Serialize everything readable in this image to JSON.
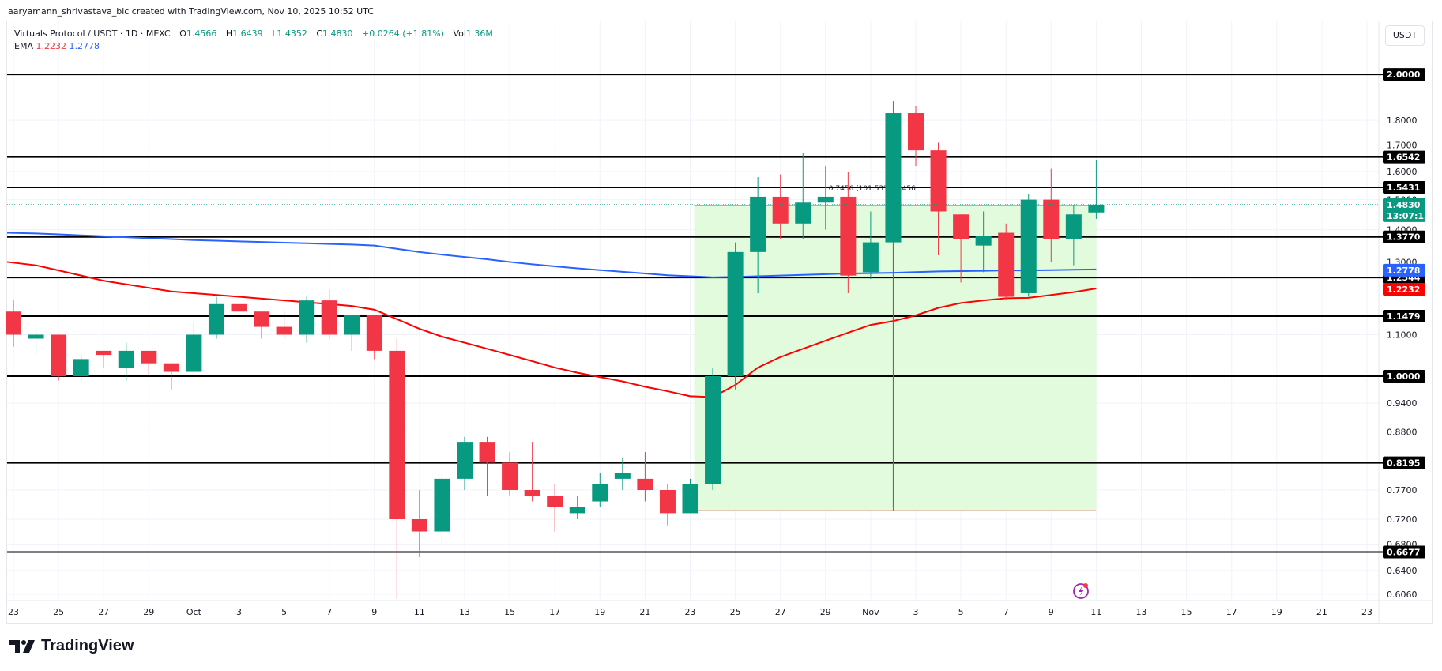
{
  "header": {
    "credit": "aaryamann_shrivastava_bic created with TradingView.com, Nov 10, 2025 10:52 UTC",
    "symbol": "Virtuals Protocol / USDT · 1D · MEXC",
    "open_label": "O",
    "open": "1.4566",
    "high_label": "H",
    "high": "1.6439",
    "low_label": "L",
    "low": "1.4352",
    "close_label": "C",
    "close": "1.4830",
    "change": "+0.0264 (+1.81%)",
    "vol_label": "Vol",
    "vol": "1.36M",
    "ema_label": "EMA",
    "ema1": "1.2232",
    "ema2": "1.2778"
  },
  "currency_button": "USDT",
  "logo_text": "TradingView",
  "colors": {
    "up": "#089981",
    "down": "#f23645",
    "ema_short": "#ff0000",
    "ema_long": "#2962ff",
    "measure_fill": "#e1fbdc",
    "price_tag": "#089981"
  },
  "chart_data": {
    "type": "candlestick",
    "title": "Virtuals Protocol / USDT · 1D · MEXC",
    "scale": "log",
    "ylim": [
      0.595,
      2.12
    ],
    "y_ticks": [
      "1.8000",
      "1.7000",
      "1.6000",
      "1.5000",
      "1.4000",
      "1.3000",
      "1.1000",
      "0.9400",
      "0.8800",
      "0.7700",
      "0.7200",
      "0.6800",
      "0.6400",
      "0.6060"
    ],
    "x_ticks": [
      "23",
      "25",
      "27",
      "29",
      "Oct",
      "3",
      "5",
      "7",
      "9",
      "11",
      "13",
      "15",
      "17",
      "19",
      "21",
      "23",
      "25",
      "27",
      "29",
      "Nov",
      "3",
      "5",
      "7",
      "9",
      "11",
      "13",
      "15",
      "17",
      "19",
      "21",
      "23"
    ],
    "horizontal_levels": [
      "2.0000",
      "1.6542",
      "1.5431",
      "1.3770",
      "1.2544",
      "1.1479",
      "1.0000",
      "0.8195",
      "0.6677"
    ],
    "last_price": {
      "value": "1.4830",
      "countdown": "13:07:13"
    },
    "ema_tags": {
      "blue": "1.2778",
      "red": "1.2232"
    },
    "measure_annotation": "0.7456 (101.53%) 7,456",
    "candles": [
      {
        "d": "Sep 23",
        "o": 1.16,
        "h": 1.19,
        "l": 1.07,
        "c": 1.1
      },
      {
        "d": "Sep 24",
        "o": 1.09,
        "h": 1.12,
        "l": 1.05,
        "c": 1.1
      },
      {
        "d": "Sep 25",
        "o": 1.1,
        "h": 1.1,
        "l": 0.99,
        "c": 1.0
      },
      {
        "d": "Sep 26",
        "o": 1.0,
        "h": 1.05,
        "l": 0.99,
        "c": 1.04
      },
      {
        "d": "Sep 27",
        "o": 1.06,
        "h": 1.04,
        "l": 1.02,
        "c": 1.05
      },
      {
        "d": "Sep 28",
        "o": 1.02,
        "h": 1.08,
        "l": 0.99,
        "c": 1.06
      },
      {
        "d": "Sep 29",
        "o": 1.06,
        "h": 1.06,
        "l": 1.0,
        "c": 1.03
      },
      {
        "d": "Sep 30",
        "o": 1.03,
        "h": 1.02,
        "l": 0.97,
        "c": 1.01
      },
      {
        "d": "Oct 1",
        "o": 1.01,
        "h": 1.13,
        "l": 1.0,
        "c": 1.1
      },
      {
        "d": "Oct 2",
        "o": 1.1,
        "h": 1.2,
        "l": 1.09,
        "c": 1.18
      },
      {
        "d": "Oct 3",
        "o": 1.18,
        "h": 1.18,
        "l": 1.12,
        "c": 1.16
      },
      {
        "d": "Oct 4",
        "o": 1.16,
        "h": 1.15,
        "l": 1.09,
        "c": 1.12
      },
      {
        "d": "Oct 5",
        "o": 1.12,
        "h": 1.16,
        "l": 1.09,
        "c": 1.1
      },
      {
        "d": "Oct 6",
        "o": 1.1,
        "h": 1.2,
        "l": 1.08,
        "c": 1.19
      },
      {
        "d": "Oct 7",
        "o": 1.19,
        "h": 1.22,
        "l": 1.09,
        "c": 1.1
      },
      {
        "d": "Oct 8",
        "o": 1.1,
        "h": 1.15,
        "l": 1.06,
        "c": 1.15
      },
      {
        "d": "Oct 9",
        "o": 1.15,
        "h": 1.15,
        "l": 1.04,
        "c": 1.06
      },
      {
        "d": "Oct 10",
        "o": 1.06,
        "h": 1.09,
        "l": 0.6,
        "c": 0.72
      },
      {
        "d": "Oct 11",
        "o": 0.72,
        "h": 0.77,
        "l": 0.66,
        "c": 0.7
      },
      {
        "d": "Oct 12",
        "o": 0.7,
        "h": 0.8,
        "l": 0.68,
        "c": 0.79
      },
      {
        "d": "Oct 13",
        "o": 0.79,
        "h": 0.87,
        "l": 0.77,
        "c": 0.86
      },
      {
        "d": "Oct 14",
        "o": 0.86,
        "h": 0.87,
        "l": 0.76,
        "c": 0.82
      },
      {
        "d": "Oct 15",
        "o": 0.82,
        "h": 0.84,
        "l": 0.76,
        "c": 0.77
      },
      {
        "d": "Oct 16",
        "o": 0.77,
        "h": 0.86,
        "l": 0.75,
        "c": 0.76
      },
      {
        "d": "Oct 17",
        "o": 0.76,
        "h": 0.78,
        "l": 0.7,
        "c": 0.74
      },
      {
        "d": "Oct 18",
        "o": 0.73,
        "h": 0.76,
        "l": 0.72,
        "c": 0.74
      },
      {
        "d": "Oct 19",
        "o": 0.75,
        "h": 0.8,
        "l": 0.74,
        "c": 0.78
      },
      {
        "d": "Oct 20",
        "o": 0.79,
        "h": 0.83,
        "l": 0.77,
        "c": 0.8
      },
      {
        "d": "Oct 21",
        "o": 0.79,
        "h": 0.84,
        "l": 0.75,
        "c": 0.77
      },
      {
        "d": "Oct 22",
        "o": 0.77,
        "h": 0.78,
        "l": 0.71,
        "c": 0.73
      },
      {
        "d": "Oct 23",
        "o": 0.73,
        "h": 0.79,
        "l": 0.73,
        "c": 0.78
      },
      {
        "d": "Oct 24",
        "o": 0.78,
        "h": 1.02,
        "l": 0.77,
        "c": 1.0
      },
      {
        "d": "Oct 25",
        "o": 1.0,
        "h": 1.36,
        "l": 0.97,
        "c": 1.33
      },
      {
        "d": "Oct 26",
        "o": 1.33,
        "h": 1.58,
        "l": 1.21,
        "c": 1.51
      },
      {
        "d": "Oct 27",
        "o": 1.51,
        "h": 1.59,
        "l": 1.37,
        "c": 1.42
      },
      {
        "d": "Oct 28",
        "o": 1.42,
        "h": 1.67,
        "l": 1.37,
        "c": 1.49
      },
      {
        "d": "Oct 29",
        "o": 1.49,
        "h": 1.62,
        "l": 1.4,
        "c": 1.51
      },
      {
        "d": "Oct 30",
        "o": 1.51,
        "h": 1.6,
        "l": 1.21,
        "c": 1.26
      },
      {
        "d": "Oct 31",
        "o": 1.27,
        "h": 1.46,
        "l": 1.25,
        "c": 1.36
      },
      {
        "d": "Nov 1",
        "o": 1.36,
        "h": 1.88,
        "l": 0.74,
        "c": 1.83
      },
      {
        "d": "Nov 2",
        "o": 1.83,
        "h": 1.86,
        "l": 1.62,
        "c": 1.68
      },
      {
        "d": "Nov 3",
        "o": 1.68,
        "h": 1.71,
        "l": 1.32,
        "c": 1.46
      },
      {
        "d": "Nov 4",
        "o": 1.45,
        "h": 1.43,
        "l": 1.24,
        "c": 1.37
      },
      {
        "d": "Nov 5",
        "o": 1.35,
        "h": 1.46,
        "l": 1.27,
        "c": 1.38
      },
      {
        "d": "Nov 6",
        "o": 1.39,
        "h": 1.42,
        "l": 1.19,
        "c": 1.2
      },
      {
        "d": "Nov 7",
        "o": 1.21,
        "h": 1.52,
        "l": 1.2,
        "c": 1.5
      },
      {
        "d": "Nov 8",
        "o": 1.5,
        "h": 1.61,
        "l": 1.3,
        "c": 1.37
      },
      {
        "d": "Nov 9",
        "o": 1.37,
        "h": 1.48,
        "l": 1.29,
        "c": 1.45
      },
      {
        "d": "Nov 10",
        "o": 1.4566,
        "h": 1.6439,
        "l": 1.4352,
        "c": 1.483
      }
    ]
  }
}
